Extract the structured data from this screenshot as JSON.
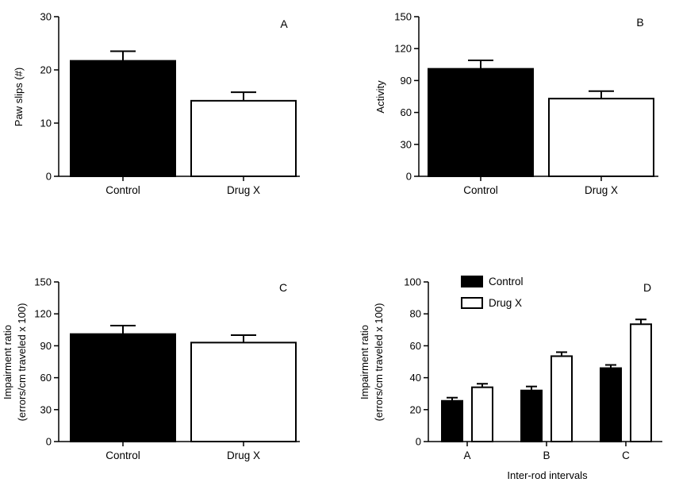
{
  "chart_data": [
    {
      "type": "bar",
      "panel_label": "A",
      "categories": [
        "Control",
        "Drug X"
      ],
      "values": [
        21.7,
        14.2
      ],
      "errors": [
        1.8,
        1.6
      ],
      "ylabel": "Paw slips (#)",
      "xlabel": "",
      "ylim": [
        0,
        30
      ],
      "yticks": [
        0,
        10,
        20,
        30
      ],
      "fill_colors": [
        "#000000",
        "#ffffff"
      ],
      "grid": false
    },
    {
      "type": "bar",
      "panel_label": "B",
      "categories": [
        "Control",
        "Drug X"
      ],
      "values": [
        101,
        73
      ],
      "errors": [
        8,
        7
      ],
      "ylabel": "Activity",
      "xlabel": "",
      "ylim": [
        0,
        150
      ],
      "yticks": [
        0,
        30,
        60,
        90,
        120,
        150
      ],
      "fill_colors": [
        "#000000",
        "#ffffff"
      ],
      "grid": false
    },
    {
      "type": "bar",
      "panel_label": "C",
      "categories": [
        "Control",
        "Drug X"
      ],
      "values": [
        101,
        93
      ],
      "errors": [
        8,
        7
      ],
      "ylabel_lines": [
        "Impairment ratio",
        "(errors/cm traveled x 100)"
      ],
      "xlabel": "",
      "ylim": [
        0,
        150
      ],
      "yticks": [
        0,
        30,
        60,
        90,
        120,
        150
      ],
      "fill_colors": [
        "#000000",
        "#ffffff"
      ],
      "grid": false
    },
    {
      "type": "bar",
      "panel_label": "D",
      "categories": [
        "A",
        "B",
        "C"
      ],
      "series": [
        {
          "name": "Control",
          "values": [
            25.5,
            32,
            46
          ],
          "errors": [
            2,
            2.5,
            2
          ],
          "color": "#000000"
        },
        {
          "name": "Drug X",
          "values": [
            34,
            53.5,
            73.5
          ],
          "errors": [
            2.2,
            2.5,
            3
          ],
          "color": "#ffffff"
        }
      ],
      "ylabel_lines": [
        "Impairment ratio",
        "(errors/cm traveled x 100)"
      ],
      "xlabel": "Inter-rod intervals",
      "ylim": [
        0,
        100
      ],
      "yticks": [
        0,
        20,
        40,
        60,
        80,
        100
      ],
      "legend_position": "top-left",
      "grid": false
    }
  ]
}
